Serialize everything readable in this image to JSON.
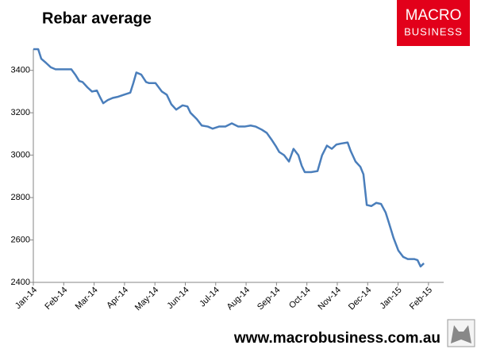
{
  "chart_data": {
    "type": "line",
    "title": "Rebar average",
    "logo": [
      "MACRO",
      "BUSINESS"
    ],
    "footer": "www.macrobusiness.com.au",
    "x": [
      0,
      0.16,
      0.26,
      0.42,
      0.57,
      0.73,
      0.94,
      1.25,
      1.38,
      1.51,
      1.62,
      1.78,
      1.93,
      2.09,
      2.19,
      2.3,
      2.45,
      2.61,
      2.77,
      2.98,
      3.19,
      3.29,
      3.39,
      3.55,
      3.71,
      3.81,
      4.02,
      4.23,
      4.39,
      4.54,
      4.7,
      4.91,
      5.07,
      5.17,
      5.38,
      5.54,
      5.74,
      5.9,
      6.11,
      6.32,
      6.53,
      6.74,
      6.95,
      7.15,
      7.31,
      7.52,
      7.68,
      7.83,
      7.99,
      8.09,
      8.25,
      8.41,
      8.56,
      8.72,
      8.83,
      8.93,
      9.14,
      9.35,
      9.5,
      9.66,
      9.82,
      9.97,
      10.13,
      10.34,
      10.44,
      10.6,
      10.76,
      10.86,
      10.97,
      11.12,
      11.28,
      11.44,
      11.59,
      11.7,
      11.85,
      12.01,
      12.17,
      12.32,
      12.53,
      12.64,
      12.74,
      12.85
    ],
    "series": [
      {
        "name": "Rebar average",
        "color": "#4a7ebb",
        "values": [
          3500,
          3500,
          3455,
          3435,
          3415,
          3405,
          3405,
          3405,
          3380,
          3350,
          3345,
          3320,
          3300,
          3305,
          3275,
          3245,
          3260,
          3270,
          3275,
          3285,
          3295,
          3340,
          3390,
          3380,
          3345,
          3340,
          3340,
          3300,
          3285,
          3240,
          3215,
          3235,
          3230,
          3200,
          3170,
          3140,
          3135,
          3125,
          3135,
          3135,
          3150,
          3135,
          3135,
          3140,
          3135,
          3120,
          3105,
          3075,
          3040,
          3015,
          3000,
          2970,
          3030,
          3000,
          2950,
          2920,
          2920,
          2925,
          3000,
          3045,
          3030,
          3050,
          3055,
          3060,
          3020,
          2970,
          2945,
          2910,
          2765,
          2760,
          2775,
          2770,
          2730,
          2680,
          2610,
          2550,
          2520,
          2510,
          2510,
          2505,
          2475,
          2490
        ]
      }
    ],
    "xlim": [
      0,
      13.5
    ],
    "xticks": [
      {
        "value": 0,
        "label": "Jan-14"
      },
      {
        "value": 1,
        "label": "Feb-14"
      },
      {
        "value": 2,
        "label": "Mar-14"
      },
      {
        "value": 3,
        "label": "Apr-14"
      },
      {
        "value": 4,
        "label": "May-14"
      },
      {
        "value": 5,
        "label": "Jun-14"
      },
      {
        "value": 6,
        "label": "Jul-14"
      },
      {
        "value": 7,
        "label": "Aug-14"
      },
      {
        "value": 8,
        "label": "Sep-14"
      },
      {
        "value": 9,
        "label": "Oct-14"
      },
      {
        "value": 10,
        "label": "Nov-14"
      },
      {
        "value": 11,
        "label": "Dec-14"
      },
      {
        "value": 12,
        "label": "Jan-15"
      },
      {
        "value": 13,
        "label": "Feb-15"
      }
    ],
    "ylim": [
      2400,
      3500
    ],
    "yticks": [
      2400,
      2600,
      2800,
      3000,
      3200,
      3400
    ],
    "grid": false
  }
}
